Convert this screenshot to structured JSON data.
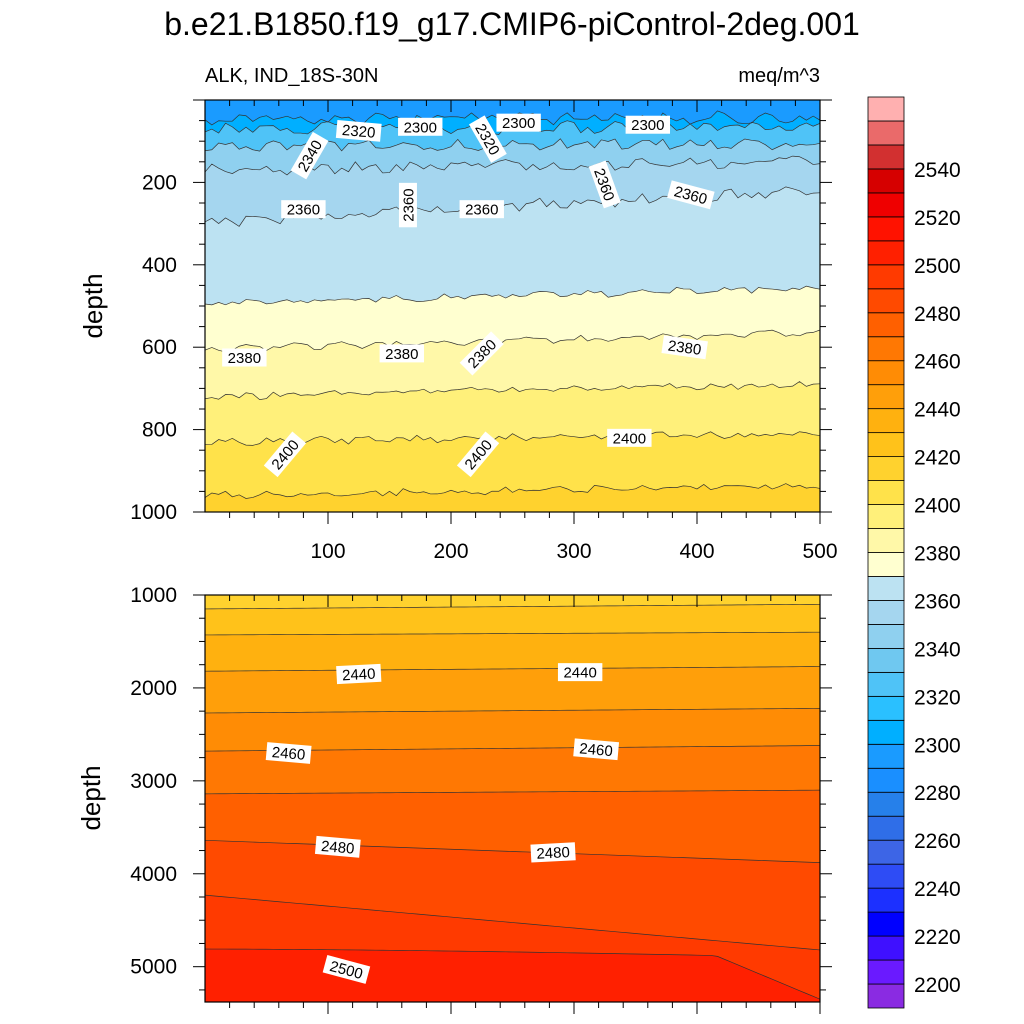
{
  "chart_data": {
    "type": "contour",
    "title": "b.e21.B1850.f19_g17.CMIP6-piControl-2deg.001",
    "variable_label": "ALK, IND_18S-30N",
    "units_label": "meq/m^3",
    "panels": [
      {
        "id": "upper",
        "ylabel": "depth",
        "xlim": [
          0,
          500
        ],
        "ylim": [
          0,
          1000
        ],
        "y_inverted": true,
        "xticks": [
          "100",
          "200",
          "300",
          "400",
          "500"
        ],
        "xtick_values": [
          100,
          200,
          300,
          400,
          500
        ],
        "yticks": [
          "200",
          "400",
          "600",
          "800",
          "1000"
        ],
        "ytick_values": [
          200,
          400,
          600,
          800,
          1000
        ],
        "contour_lines": [
          {
            "level": 2300,
            "depths": [
              45,
              43
            ]
          },
          {
            "level": 2320,
            "depths": [
              70,
              65
            ]
          },
          {
            "level": 2340,
            "depths": [
              115,
              105
            ]
          },
          {
            "level": 2350,
            "depths": [
              170,
              150
            ]
          },
          {
            "level": 2360,
            "depths": [
              295,
              220
            ]
          },
          {
            "level": 2370,
            "depths": [
              495,
              455
            ]
          },
          {
            "level": 2380,
            "depths": [
              605,
              565
            ]
          },
          {
            "level": 2390,
            "depths": [
              720,
              690
            ]
          },
          {
            "level": 2400,
            "depths": [
              830,
              810
            ]
          },
          {
            "level": 2410,
            "depths": [
              960,
              935
            ]
          }
        ],
        "labels": [
          {
            "text": "2300",
            "x": 175,
            "depth": 65,
            "angle": 0
          },
          {
            "text": "2300",
            "x": 255,
            "depth": 55,
            "angle": 0
          },
          {
            "text": "2300",
            "x": 360,
            "depth": 60,
            "angle": 0
          },
          {
            "text": "2320",
            "x": 125,
            "depth": 75,
            "angle": 5
          },
          {
            "text": "2320",
            "x": 230,
            "depth": 95,
            "angle": 60
          },
          {
            "text": "2340",
            "x": 85,
            "depth": 135,
            "angle": -60
          },
          {
            "text": "2360",
            "x": 80,
            "depth": 265,
            "angle": 0
          },
          {
            "text": "2360",
            "x": 165,
            "depth": 255,
            "angle": -90
          },
          {
            "text": "2360",
            "x": 225,
            "depth": 265,
            "angle": 0
          },
          {
            "text": "2360",
            "x": 325,
            "depth": 205,
            "angle": 70
          },
          {
            "text": "2360",
            "x": 395,
            "depth": 230,
            "angle": 15
          },
          {
            "text": "2380",
            "x": 32,
            "depth": 625,
            "angle": 0
          },
          {
            "text": "2380",
            "x": 160,
            "depth": 615,
            "angle": 0
          },
          {
            "text": "2380",
            "x": 225,
            "depth": 615,
            "angle": -45
          },
          {
            "text": "2380",
            "x": 390,
            "depth": 600,
            "angle": 8
          },
          {
            "text": "2400",
            "x": 65,
            "depth": 860,
            "angle": -50
          },
          {
            "text": "2400",
            "x": 222,
            "depth": 860,
            "angle": -50
          },
          {
            "text": "2400",
            "x": 345,
            "depth": 820,
            "angle": 0
          }
        ]
      },
      {
        "id": "lower",
        "ylabel": "depth",
        "xlim": [
          0,
          500
        ],
        "ylim": [
          1000,
          5380
        ],
        "y_inverted": true,
        "xticks": [],
        "xtick_values": [
          100,
          200,
          300,
          400,
          500
        ],
        "yticks": [
          "1000",
          "2000",
          "3000",
          "4000",
          "5000"
        ],
        "ytick_values": [
          1000,
          2000,
          3000,
          4000,
          5000
        ],
        "contour_lines": [
          {
            "level": 2420,
            "depths": [
              1150,
              1100
            ]
          },
          {
            "level": 2430,
            "depths": [
              1430,
              1400
            ]
          },
          {
            "level": 2440,
            "depths": [
              1820,
              1770
            ]
          },
          {
            "level": 2450,
            "depths": [
              2270,
              2220
            ]
          },
          {
            "level": 2460,
            "depths": [
              2680,
              2620
            ]
          },
          {
            "level": 2470,
            "depths": [
              3140,
              3100
            ]
          },
          {
            "level": 2480,
            "depths": [
              3640,
              3880
            ]
          },
          {
            "level": 2490,
            "depths": [
              4230,
              4820
            ]
          },
          {
            "level": 2500,
            "depths": [
              4810,
              5350
            ]
          }
        ],
        "labels": [
          {
            "text": "2440",
            "x": 125,
            "depth": 1850,
            "angle": -3
          },
          {
            "text": "2440",
            "x": 305,
            "depth": 1830,
            "angle": 0
          },
          {
            "text": "2460",
            "x": 68,
            "depth": 2700,
            "angle": 5
          },
          {
            "text": "2460",
            "x": 318,
            "depth": 2660,
            "angle": 5
          },
          {
            "text": "2480",
            "x": 108,
            "depth": 3710,
            "angle": 5
          },
          {
            "text": "2480",
            "x": 283,
            "depth": 3770,
            "angle": -3
          },
          {
            "text": "2500",
            "x": 115,
            "depth": 5030,
            "angle": 15
          }
        ]
      }
    ],
    "colorbar": {
      "levels": [
        2200,
        2210,
        2220,
        2230,
        2240,
        2250,
        2260,
        2270,
        2280,
        2290,
        2300,
        2310,
        2320,
        2330,
        2340,
        2350,
        2360,
        2370,
        2380,
        2390,
        2400,
        2410,
        2420,
        2430,
        2440,
        2450,
        2460,
        2470,
        2480,
        2490,
        2500,
        2510,
        2520,
        2530,
        2540,
        2550
      ],
      "tick_labels": [
        "2200",
        "2220",
        "2240",
        "2260",
        "2280",
        "2300",
        "2320",
        "2340",
        "2360",
        "2380",
        "2400",
        "2420",
        "2440",
        "2460",
        "2480",
        "2500",
        "2520",
        "2540"
      ],
      "colors": [
        "#8a2be2",
        "#6a1aff",
        "#3f10ff",
        "#0000ff",
        "#1c30ff",
        "#2e4cf5",
        "#3d65e6",
        "#2f6ee8",
        "#2680ea",
        "#1a8fff",
        "#1a9bff",
        "#00afff",
        "#2ac0ff",
        "#4fc3f7",
        "#6fc8f0",
        "#8fd0ef",
        "#a5d6ef",
        "#bce2f2",
        "#ffffd0",
        "#fff8a8",
        "#fff07a",
        "#ffe24a",
        "#ffd22e",
        "#ffc21a",
        "#ffb10f",
        "#ff9f0a",
        "#ff8c05",
        "#ff7803",
        "#ff6000",
        "#ff4a00",
        "#ff3a00",
        "#ff2000",
        "#ff1200",
        "#ef0000",
        "#d60000",
        "#d23030",
        "#ea6a6a",
        "#ffb0b0"
      ]
    }
  }
}
